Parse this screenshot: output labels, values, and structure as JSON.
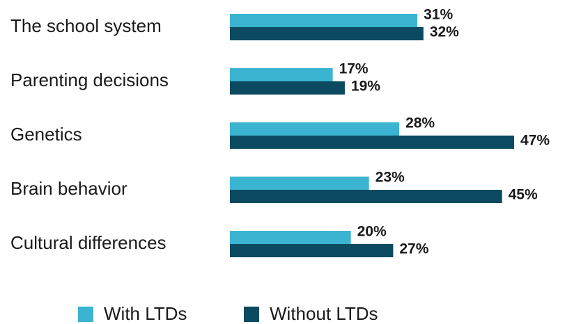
{
  "chart_data": {
    "type": "bar",
    "orientation": "horizontal",
    "categories": [
      "The school system",
      "Parenting decisions",
      "Genetics",
      "Brain behavior",
      "Cultural differences"
    ],
    "series": [
      {
        "name": "With LTDs",
        "color": "#3ab4d0",
        "values": [
          31,
          17,
          28,
          23,
          20
        ],
        "value_labels": [
          "31%",
          "17%",
          "28%",
          "23%",
          "20%"
        ]
      },
      {
        "name": "Without LTDs",
        "color": "#0b4a60",
        "values": [
          32,
          19,
          47,
          45,
          27
        ],
        "value_labels": [
          "32%",
          "19%",
          "47%",
          "45%",
          "27%"
        ]
      }
    ],
    "legend": "bottom"
  }
}
